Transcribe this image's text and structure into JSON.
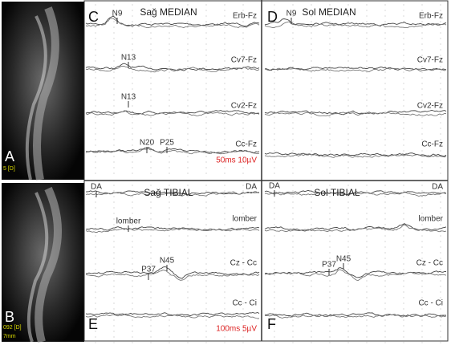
{
  "images": [
    {
      "label": "A",
      "overlay_texts": [
        "5 [D]"
      ]
    },
    {
      "label": "B",
      "overlay_texts": [
        "092 [D]",
        "7mm"
      ]
    }
  ],
  "trace_panels": [
    {
      "label": "C",
      "title": "Sağ MEDIAN",
      "channels": [
        "Erb-Fz",
        "Cv7-Fz",
        "Cv2-Fz",
        "Cc-Fz"
      ],
      "peaks": [
        "N9",
        "N13",
        "N13",
        "N20",
        "P25"
      ],
      "scale": "50ms 10µV"
    },
    {
      "label": "D",
      "title": "Sol MEDIAN",
      "channels": [
        "Erb-Fz",
        "Cv7-Fz",
        "Cv2-Fz",
        "Cc-Fz"
      ],
      "peaks": [
        "N9"
      ]
    },
    {
      "label": "E",
      "title": "Sağ TIBIAL",
      "channels": [
        "DA",
        "lomber",
        "Cz - Cc",
        "Cc - Ci"
      ],
      "peaks": [
        "DA",
        "lomber",
        "P37",
        "N45"
      ],
      "scale": "100ms 5µV"
    },
    {
      "label": "F",
      "title": "Sol TIBIAL",
      "channels": [
        "DA",
        "lomber",
        "Cz - Cc",
        "Cc - Ci"
      ],
      "peaks": [
        "DA",
        "P37",
        "N45"
      ]
    }
  ]
}
